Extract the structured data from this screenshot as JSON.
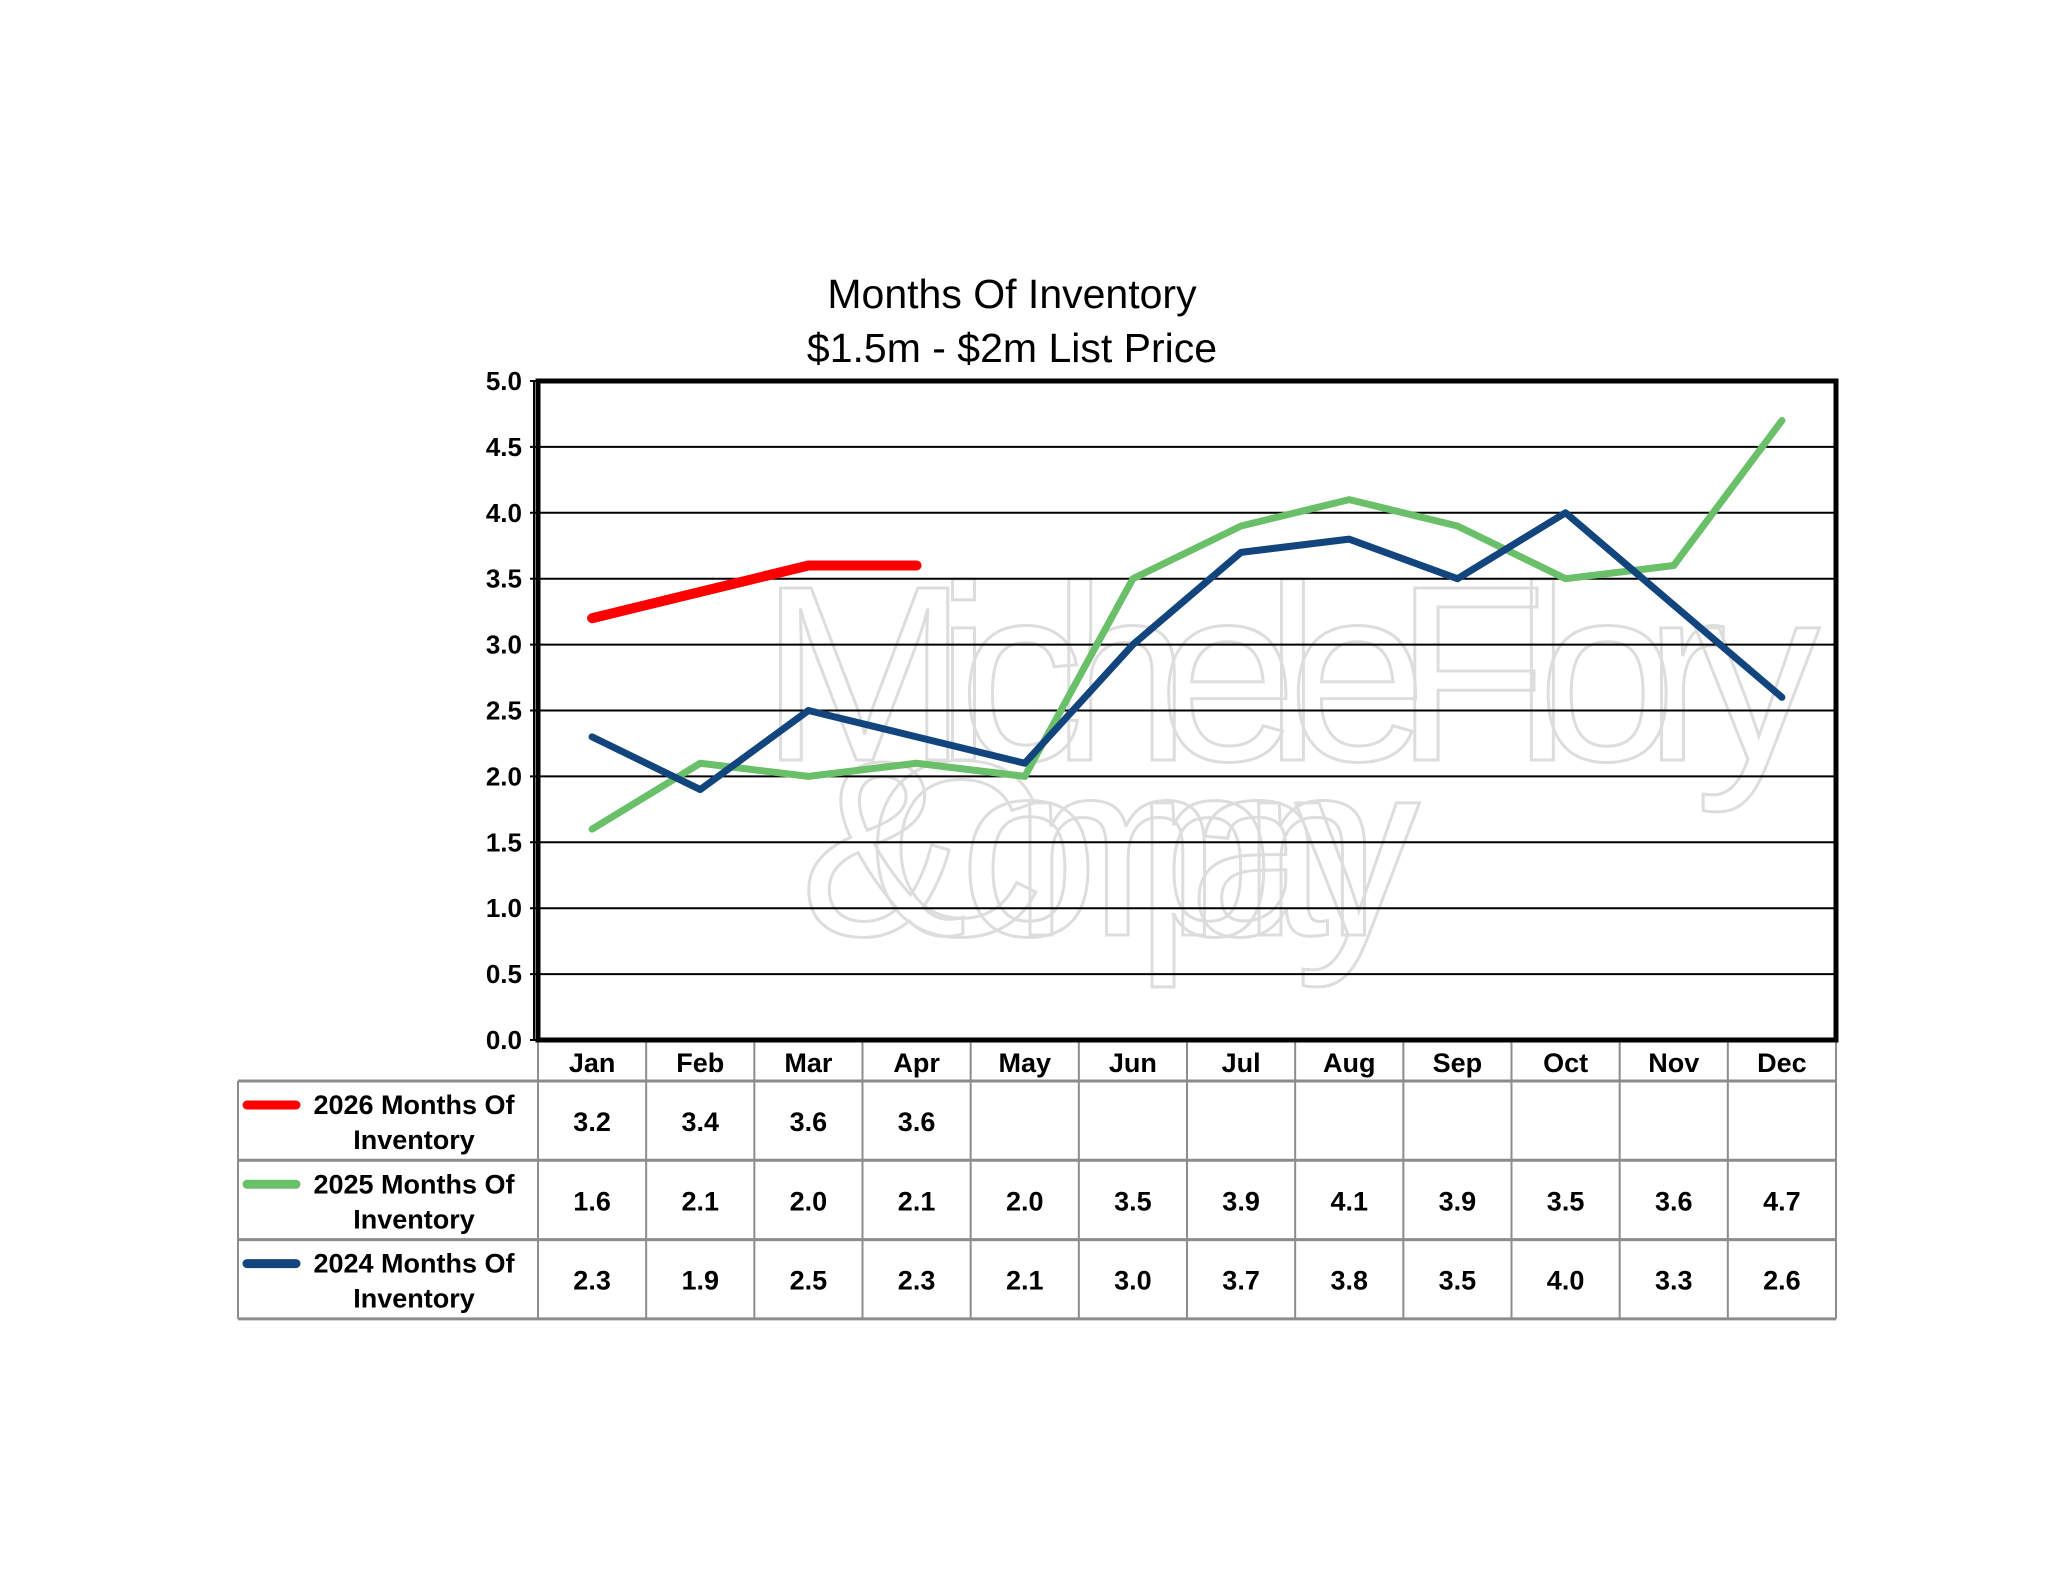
{
  "chart_data": {
    "type": "line",
    "title": "Months Of Inventory",
    "subtitle": "$1.5m - $2m List Price",
    "xlabel": "",
    "ylabel": "",
    "ylim": [
      0,
      5
    ],
    "yticks": [
      "0.0",
      "0.5",
      "1.0",
      "1.5",
      "2.0",
      "2.5",
      "3.0",
      "3.5",
      "4.0",
      "4.5",
      "5.0"
    ],
    "grid": true,
    "legend": "data-table-left",
    "categories": [
      "Jan",
      "Feb",
      "Mar",
      "Apr",
      "May",
      "Jun",
      "Jul",
      "Aug",
      "Sep",
      "Oct",
      "Nov",
      "Dec"
    ],
    "series": [
      {
        "name": "2026 Months Of Inventory",
        "label_line1": "2026 Months Of",
        "label_line2": "Inventory",
        "color": "#ff0000",
        "values": [
          3.2,
          3.4,
          3.6,
          3.6,
          null,
          null,
          null,
          null,
          null,
          null,
          null,
          null
        ]
      },
      {
        "name": "2025 Months Of Inventory",
        "label_line1": "2025 Months Of",
        "label_line2": "Inventory",
        "color": "#6abf69",
        "values": [
          1.6,
          2.1,
          2.0,
          2.1,
          2.0,
          3.5,
          3.9,
          4.1,
          3.9,
          3.5,
          3.6,
          4.7
        ]
      },
      {
        "name": "2024 Months Of Inventory",
        "label_line1": "2024 Months Of",
        "label_line2": "Inventory",
        "color": "#12457e",
        "values": [
          2.3,
          1.9,
          2.5,
          2.3,
          2.1,
          3.0,
          3.7,
          3.8,
          3.5,
          4.0,
          3.3,
          2.6
        ]
      }
    ]
  },
  "watermark": {
    "line1": "MicheleFlory",
    "line2": "& Company"
  }
}
